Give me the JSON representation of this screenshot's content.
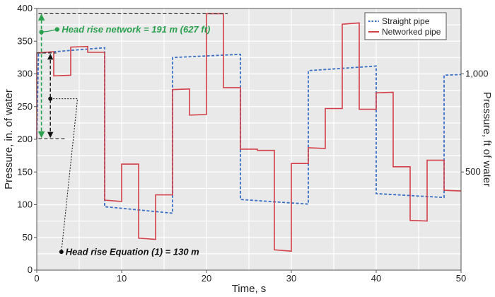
{
  "chart_data": {
    "type": "line",
    "xlabel": "Time, s",
    "ylabel": "Pressure, in. of water",
    "y2label": "Pressure, ft of water",
    "xlim": [
      0,
      50
    ],
    "ylim": [
      0,
      400
    ],
    "y2lim": [
      0,
      1333.3
    ],
    "x_ticks": [
      "0",
      "10",
      "20",
      "30",
      "40",
      "50"
    ],
    "x_tick_values": [
      0,
      10,
      20,
      30,
      40,
      50
    ],
    "y_ticks": [
      "0",
      "50",
      "100",
      "150",
      "200",
      "250",
      "300",
      "350",
      "400"
    ],
    "y_tick_values": [
      0,
      50,
      100,
      150,
      200,
      250,
      300,
      350,
      400
    ],
    "y2_ticks": [
      "500",
      "1,000"
    ],
    "y2_tick_values": [
      500,
      1000
    ],
    "grid": true,
    "legend_position": "top-right",
    "series": [
      {
        "name": "Straight pipe",
        "color": "#3a6fc4",
        "style": "dotted",
        "x": [
          0,
          0.2,
          8,
          8,
          16,
          16,
          24,
          24,
          32,
          32,
          40,
          40,
          48,
          48,
          50
        ],
        "y": [
          200,
          332,
          340,
          97,
          87,
          325,
          330,
          108,
          101,
          305,
          312,
          117,
          111,
          298,
          299
        ]
      },
      {
        "name": "Networked pipe",
        "color": "#d2404a",
        "style": "solid",
        "x": [
          0,
          0,
          2,
          2,
          4,
          4,
          6,
          6,
          8,
          8,
          10,
          10,
          12,
          12,
          14,
          14,
          16,
          16,
          18,
          18,
          20,
          20,
          22,
          22,
          24,
          24,
          26,
          26,
          28,
          28,
          30,
          30,
          32,
          32,
          34,
          34,
          36,
          36,
          38,
          38,
          40,
          40,
          42,
          42,
          44,
          44,
          46,
          46,
          48,
          48,
          50
        ],
        "y": [
          200,
          332,
          334,
          297,
          298,
          341,
          342,
          333,
          333,
          107,
          105,
          162,
          162,
          49,
          47,
          115,
          115,
          276,
          277,
          237,
          238,
          392,
          392,
          279,
          279,
          185,
          185,
          183,
          183,
          31,
          29,
          163,
          163,
          187,
          186,
          247,
          247,
          376,
          378,
          246,
          246,
          271,
          272,
          158,
          158,
          76,
          75,
          168,
          168,
          122,
          121
        ]
      }
    ],
    "annotations": [
      {
        "text": "Head rise network = 191 m (627 ft)",
        "color": "#2ba04f"
      },
      {
        "text": "Head rise Equation (1) = 130 m",
        "color": "#111111"
      }
    ]
  }
}
